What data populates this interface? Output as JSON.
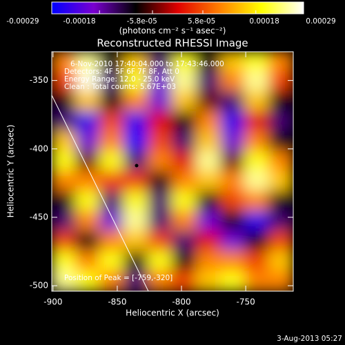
{
  "chart_data": {
    "type": "heatmap",
    "title": "Reconstructed RHESSI Image",
    "x_label": "Heliocentric X (arcsec)",
    "y_label": "Heliocentric Y (arcsec)",
    "colorbar_label": "(photons cm⁻² s⁻¹ asec⁻²)",
    "annotations": [
      "6-Nov-2010 17:40:04.000 to 17:43:46.000",
      "Detectors: 4F 5F 6F 7F 8F, Att 0",
      "Energy Range: 12.0 - 25.0 keV",
      "Clean : Total counts: 5.67E+03"
    ],
    "peak_label": "Position of Peak = [-759,-320]",
    "footer": "3-Aug-2013 05:27",
    "xlim": [
      -901,
      -713
    ],
    "ylim": [
      -504,
      -329
    ],
    "xticks": [
      -900,
      -850,
      -800,
      -750
    ],
    "yticks": [
      -350,
      -400,
      -450,
      -500
    ],
    "zlim": [
      -0.00029,
      0.00029
    ],
    "zticks": [
      -0.00029,
      -0.00018,
      {
        "value": -5.8e-05,
        "label": "-5.8e-05"
      },
      {
        "value": 5.8e-05,
        "label": "5.8e-05"
      },
      0.00018,
      0.00029
    ],
    "colormap": [
      "#0000ff",
      "#7a00d0",
      "#000000",
      "#e00000",
      "#ff8000",
      "#ffff00",
      "#ffffff"
    ],
    "z": [
      [
        0.0001,
        0.00025,
        -0.0001,
        0.00015,
        -0.00015,
        0.0002,
        -0.0001,
        0.00015,
        0.0002,
        0.0001
      ],
      [
        5e-05,
        0.00028,
        -0.00015,
        0.0002,
        -0.0002,
        0.00025,
        -0.00015,
        0.0001,
        0.00025,
        5e-05
      ],
      [
        -0.0001,
        0.00015,
        -0.0001,
        0.0001,
        -0.0002,
        0.00015,
        -5e-05,
        -0.00015,
        0.00015,
        -0.0001
      ],
      [
        -0.00015,
        -0.00025,
        5e-05,
        -0.00025,
        0,
        -0.0001,
        0.0001,
        -0.00025,
        0,
        -0.00015
      ],
      [
        0.00015,
        -0.0002,
        0.0001,
        -0.00028,
        5e-05,
        -0.00015,
        0.00015,
        -0.0002,
        0.0001,
        -0.0001
      ],
      [
        0.0002,
        -5e-05,
        0.0002,
        -0.00015,
        0.0001,
        0,
        0.00025,
        -5e-05,
        0.0002,
        0.0001
      ],
      [
        0.0001,
        0.0001,
        5e-05,
        5e-05,
        -0.0001,
        0.0001,
        0.00015,
        0.0001,
        0.00025,
        0.00015
      ],
      [
        -0.0001,
        0.0002,
        -0.00015,
        0.0002,
        -0.00015,
        0.0002,
        -0.0001,
        5e-05,
        0.0001,
        -0.0001
      ],
      [
        -0.00015,
        0.0001,
        -0.0002,
        0.00025,
        -0.00015,
        0.0001,
        -0.0002,
        -0.0001,
        -0.00025,
        -0.00015
      ],
      [
        5e-05,
        -0.0001,
        0.0001,
        0.00015,
        5e-05,
        -0.00015,
        0,
        -0.0002,
        -0.0001,
        5e-05
      ],
      [
        0.0002,
        0.0001,
        0.0002,
        -0.0001,
        0.0002,
        -0.0001,
        0.0001,
        0.0001,
        5e-05,
        0.00015
      ],
      [
        0.00025,
        0.0002,
        0.0001,
        -0.00015,
        0.0001,
        5e-05,
        0.00015,
        0.0002,
        0.0001,
        0.0001
      ]
    ]
  }
}
